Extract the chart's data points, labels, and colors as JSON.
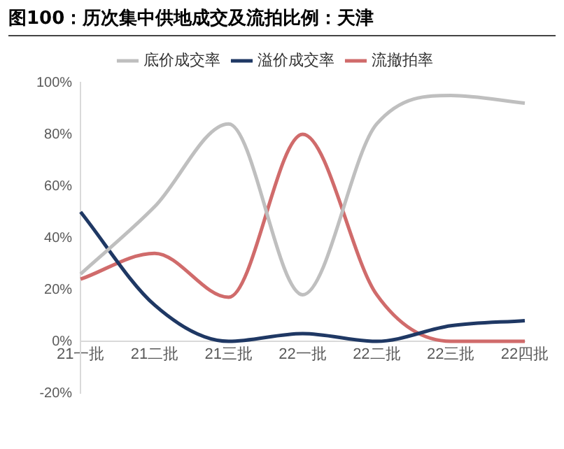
{
  "chart_data": {
    "type": "line",
    "title": "图100：历次集中供地成交及流拍比例：天津",
    "categories": [
      "21一批",
      "21二批",
      "21三批",
      "22一批",
      "22二批",
      "22三批",
      "22四批"
    ],
    "series": [
      {
        "name": "底价成交率",
        "color": "#bfbfbf",
        "values": [
          26,
          52,
          84,
          18,
          84,
          95,
          92
        ]
      },
      {
        "name": "溢价成交率",
        "color": "#1f3864",
        "values": [
          50,
          14,
          0,
          3,
          0,
          6,
          8
        ]
      },
      {
        "name": "流撤拍率",
        "color": "#d06b6b",
        "values": [
          24,
          34,
          17,
          80,
          18,
          0,
          0
        ]
      }
    ],
    "ylim": [
      -20,
      100
    ],
    "yticks": [
      {
        "value": -20,
        "label": "-20%"
      },
      {
        "value": 0,
        "label": "0%"
      },
      {
        "value": 20,
        "label": "20%"
      },
      {
        "value": 40,
        "label": "40%"
      },
      {
        "value": 60,
        "label": "60%"
      },
      {
        "value": 80,
        "label": "80%"
      },
      {
        "value": 100,
        "label": "100%"
      }
    ],
    "grid": false,
    "legend": "top",
    "marker": "none",
    "line_style": "solid"
  }
}
